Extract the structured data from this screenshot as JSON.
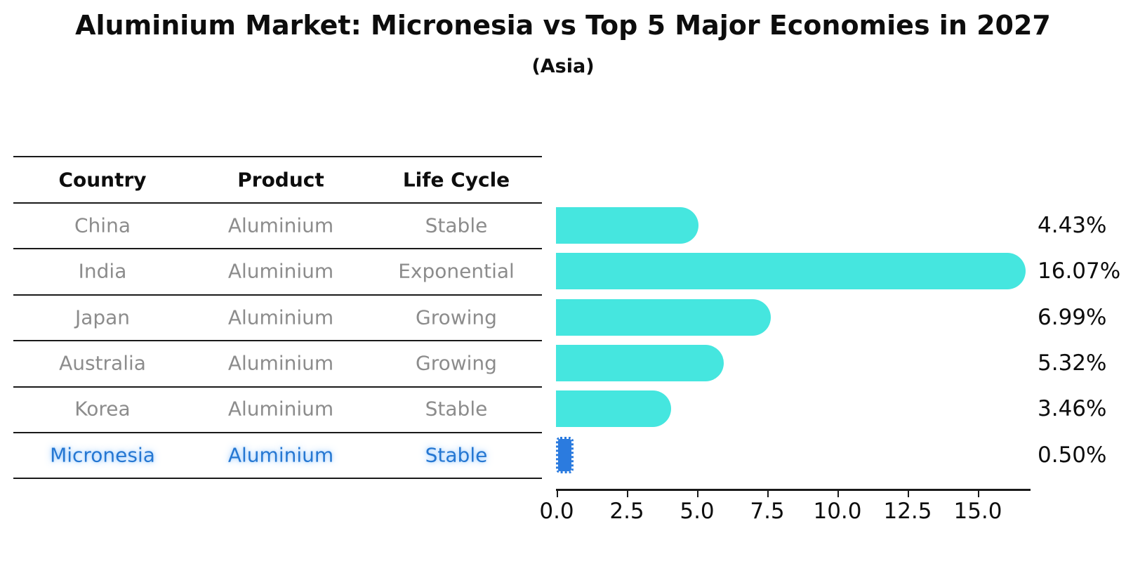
{
  "title": "Aluminium Market: Micronesia vs Top 5 Major Economies in 2027",
  "subtitle": "(Asia)",
  "colors": {
    "bar": "#45e6df",
    "highlight_bar": "#2b7bdf",
    "highlight_text": "#2577d2",
    "row_text": "#8c8c8c",
    "header_text": "#0d0d0d",
    "axis": "#1a1a1a"
  },
  "table": {
    "headers": [
      "Country",
      "Product",
      "Life Cycle"
    ],
    "rows": [
      {
        "country": "China",
        "product": "Aluminium",
        "life_cycle": "Stable",
        "highlight": false
      },
      {
        "country": "India",
        "product": "Aluminium",
        "life_cycle": "Exponential",
        "highlight": false
      },
      {
        "country": "Japan",
        "product": "Aluminium",
        "life_cycle": "Growing",
        "highlight": false
      },
      {
        "country": "Australia",
        "product": "Aluminium",
        "life_cycle": "Growing",
        "highlight": false
      },
      {
        "country": "Korea",
        "product": "Aluminium",
        "life_cycle": "Stable",
        "highlight": false
      },
      {
        "country": "Micronesia",
        "product": "Aluminium",
        "life_cycle": "Stable",
        "highlight": true
      }
    ]
  },
  "chart_data": {
    "type": "bar",
    "orientation": "horizontal",
    "title": "Aluminium Market: Micronesia vs Top 5 Major Economies in 2027",
    "subtitle": "(Asia)",
    "categories": [
      "China",
      "India",
      "Japan",
      "Australia",
      "Korea",
      "Micronesia"
    ],
    "values": [
      4.43,
      16.07,
      6.99,
      5.32,
      3.46,
      0.5
    ],
    "value_labels": [
      "4.43%",
      "16.07%",
      "6.99%",
      "5.32%",
      "3.46%",
      "0.50%"
    ],
    "highlight_category": "Micronesia",
    "x_ticks": [
      0.0,
      2.5,
      5.0,
      7.5,
      10.0,
      12.5,
      15.0
    ],
    "x_tick_labels": [
      "0.0",
      "2.5",
      "5.0",
      "7.5",
      "10.0",
      "12.5",
      "15.0"
    ],
    "xlim": [
      0,
      16.9
    ],
    "xlabel": "",
    "ylabel": "",
    "grid": false,
    "legend": false
  }
}
